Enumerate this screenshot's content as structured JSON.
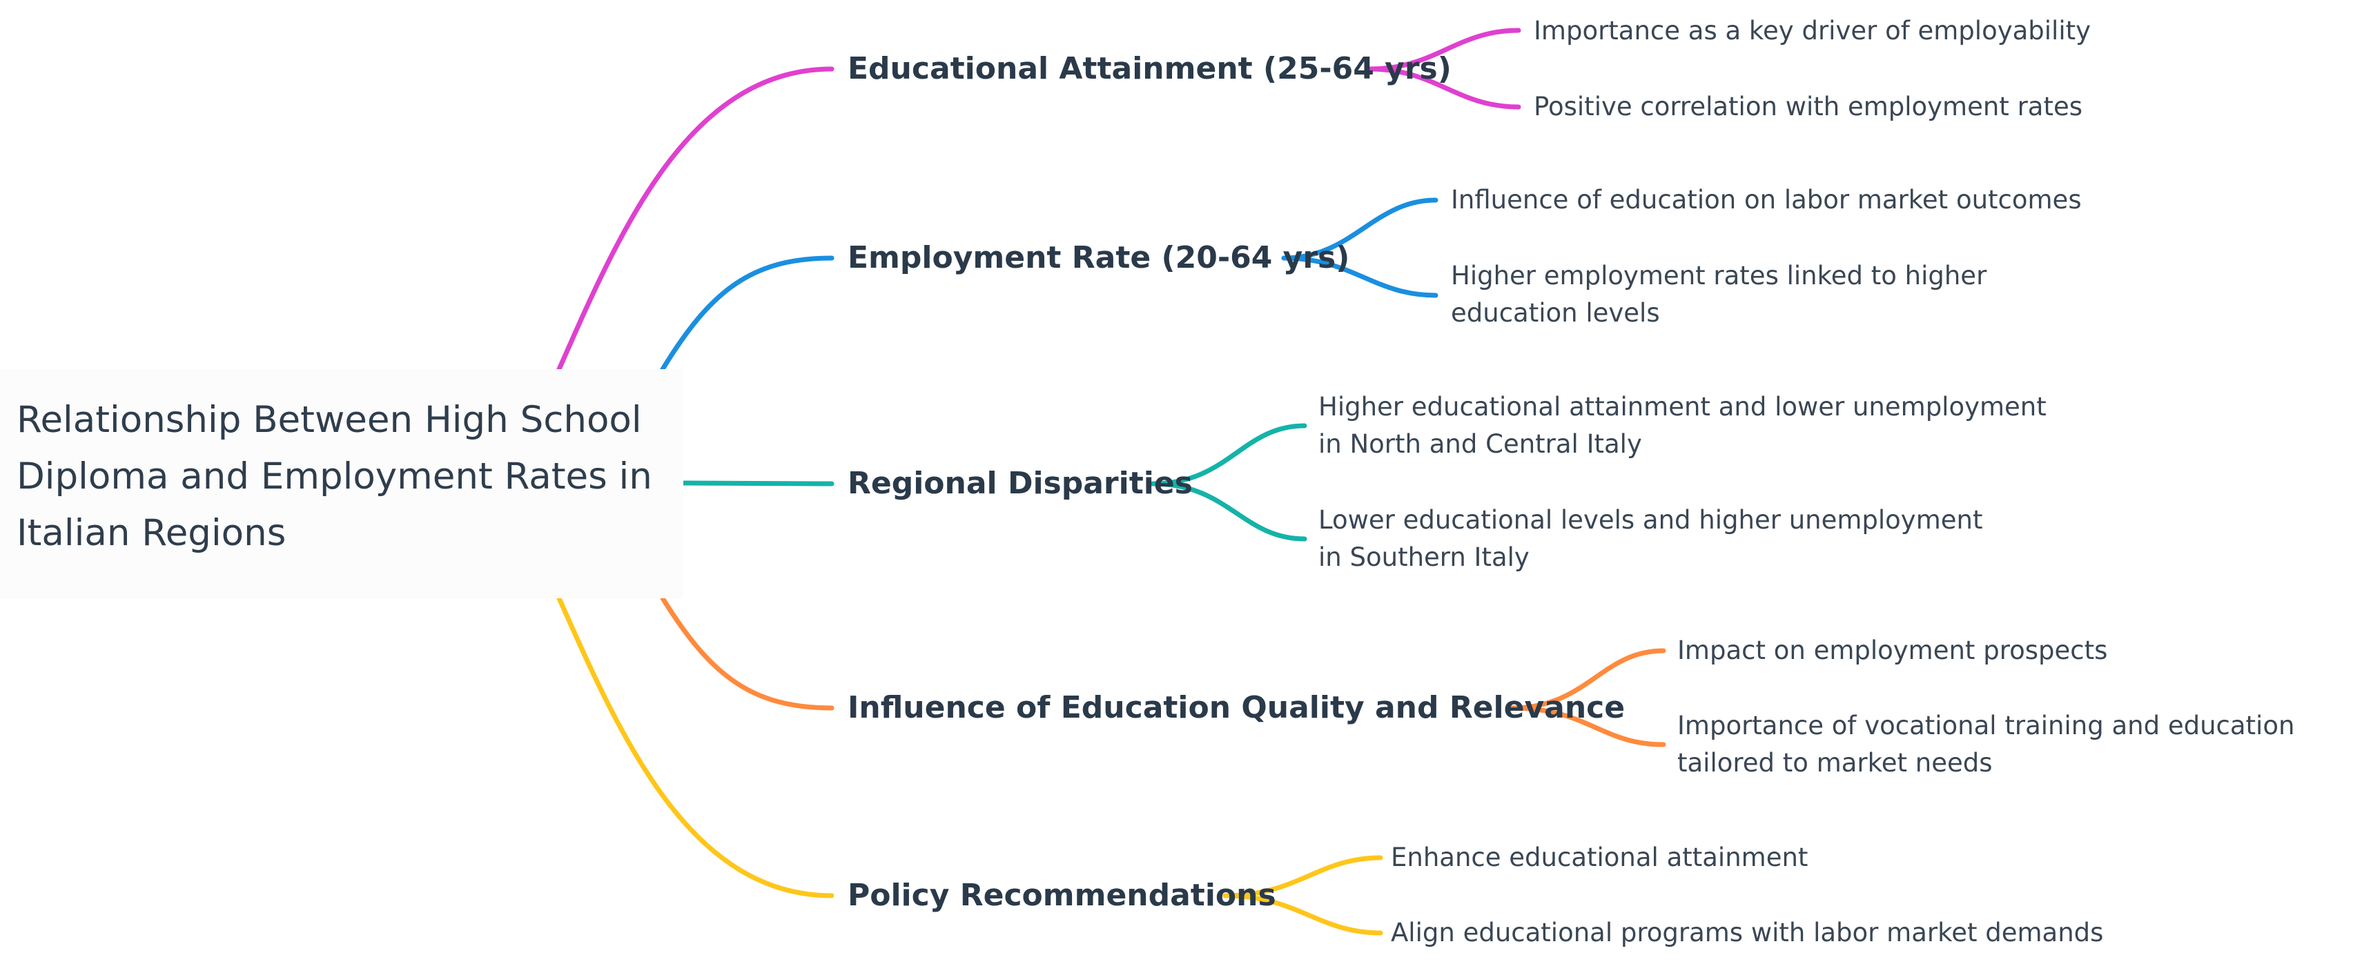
{
  "root": {
    "title_lines": [
      "Relationship Between High School",
      "Diploma and Employment Rates in",
      "Italian Regions"
    ]
  },
  "branches": [
    {
      "label": "Educational Attainment (25-64 yrs)",
      "color": "#e040d0",
      "children": [
        "Importance as a key driver of employability",
        "Positive correlation with employment rates"
      ]
    },
    {
      "label": "Employment Rate (20-64 yrs)",
      "color": "#1a8fe0",
      "children": [
        "Influence of education on labor market outcomes",
        "Higher employment rates linked to higher education levels"
      ]
    },
    {
      "label": "Regional Disparities",
      "color": "#14b3a8",
      "children": [
        "Higher educational attainment and lower unemployment in North and Central Italy",
        "Lower educational levels and higher unemployment in Southern Italy"
      ]
    },
    {
      "label": "Influence of Education Quality and Relevance",
      "color": "#ff8a3d",
      "children": [
        "Impact on employment prospects",
        "Importance of vocational training and education tailored to market needs"
      ]
    },
    {
      "label": "Policy Recommendations",
      "color": "#ffc61a",
      "children": [
        "Enhance educational attainment",
        "Align educational programs with labor market demands"
      ]
    }
  ]
}
